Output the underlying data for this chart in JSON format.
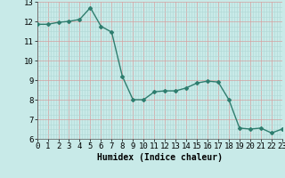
{
  "x": [
    0,
    1,
    2,
    3,
    4,
    5,
    6,
    7,
    8,
    9,
    10,
    11,
    12,
    13,
    14,
    15,
    16,
    17,
    18,
    19,
    20,
    21,
    22,
    23
  ],
  "y": [
    11.85,
    11.85,
    11.95,
    12.0,
    12.1,
    12.7,
    11.75,
    11.45,
    9.2,
    8.0,
    8.0,
    8.4,
    8.45,
    8.45,
    8.6,
    8.85,
    8.95,
    8.9,
    8.0,
    6.55,
    6.5,
    6.55,
    6.3,
    6.5
  ],
  "line_color": "#2e7d6e",
  "marker": "D",
  "marker_size": 2,
  "linewidth": 1.0,
  "xlabel": "Humidex (Indice chaleur)",
  "bg_color": "#c8eae8",
  "grid_white_color": "#b0d8d5",
  "grid_red_color": "#d4a0a0",
  "ylim": [
    6,
    13
  ],
  "xlim": [
    0,
    23
  ],
  "yticks": [
    6,
    7,
    8,
    9,
    10,
    11,
    12,
    13
  ],
  "xticks": [
    0,
    1,
    2,
    3,
    4,
    5,
    6,
    7,
    8,
    9,
    10,
    11,
    12,
    13,
    14,
    15,
    16,
    17,
    18,
    19,
    20,
    21,
    22,
    23
  ],
  "xlabel_fontsize": 7,
  "tick_fontsize": 6.5
}
